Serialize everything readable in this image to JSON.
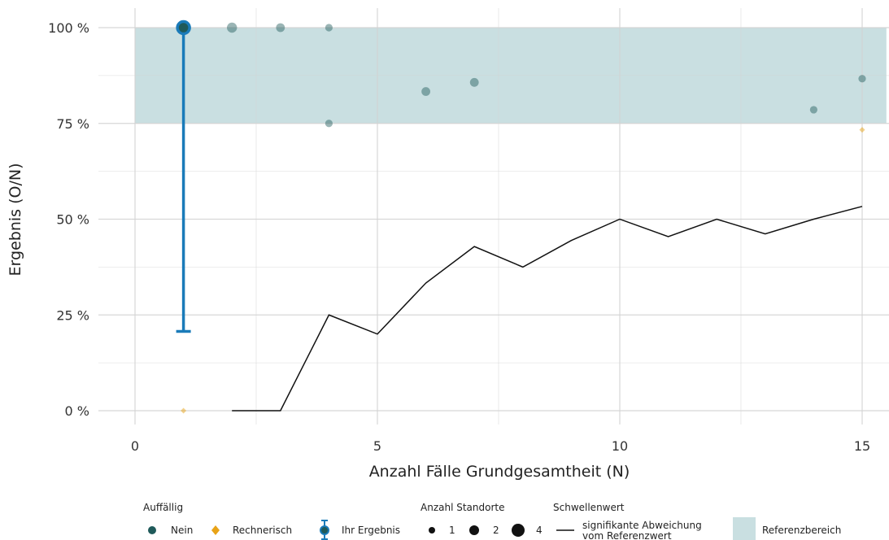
{
  "chart_data": {
    "type": "scatter",
    "xlabel": "Anzahl Fälle Grundgesamtheit (N)",
    "ylabel": "Ergebnis (O/N)",
    "xlim": [
      -0.75,
      15.5
    ],
    "ylim": [
      -0.04,
      1.05
    ],
    "x_ticks": [
      0,
      5,
      10,
      15
    ],
    "x_tick_labels": [
      "0",
      "5",
      "10",
      "15"
    ],
    "y_ticks": [
      0,
      0.25,
      0.5,
      0.75,
      1.0
    ],
    "y_tick_labels": [
      "0 %",
      "25 %",
      "50 %",
      "75 %",
      "100 %"
    ],
    "grid": true,
    "reference_range": {
      "from": 0,
      "to": 15.5,
      "y_min": 0.75,
      "y_max": 1.0,
      "color": "#c9dfe1"
    },
    "points_nein": [
      {
        "x": 1,
        "y": 1.0,
        "count": 3
      },
      {
        "x": 2,
        "y": 1.0,
        "count": 2
      },
      {
        "x": 3,
        "y": 1.0,
        "count": 1.5
      },
      {
        "x": 4,
        "y": 1.0,
        "count": 1
      },
      {
        "x": 4,
        "y": 0.75,
        "count": 1
      },
      {
        "x": 6,
        "y": 0.8333,
        "count": 1.5
      },
      {
        "x": 7,
        "y": 0.8571,
        "count": 1.5
      },
      {
        "x": 14,
        "y": 0.7857,
        "count": 1
      },
      {
        "x": 15,
        "y": 0.8667,
        "count": 1
      }
    ],
    "points_rechnerisch": [
      {
        "x": 1,
        "y": 0.0
      },
      {
        "x": 15,
        "y": 0.7333
      }
    ],
    "own_result": {
      "x": 1,
      "y": 1.0,
      "ci_low": 0.207,
      "ci_high": 1.0
    },
    "threshold_line": {
      "x": [
        2,
        3,
        4,
        5,
        6,
        7,
        8,
        9,
        10,
        11,
        12,
        13,
        14,
        15
      ],
      "y": [
        0.0,
        0.0,
        0.25,
        0.2,
        0.3333,
        0.4286,
        0.375,
        0.4444,
        0.5,
        0.4545,
        0.5,
        0.4615,
        0.5,
        0.5333
      ]
    },
    "colors": {
      "nein": "#1f5a5a",
      "rechnerisch": "#e8a317",
      "ihr_ergebnis": "#1a7bb9",
      "threshold": "#111111",
      "reference": "#c9dfe1",
      "grid": "#d3d3d3"
    },
    "legend": {
      "placement": "bottom",
      "auffaellig_title": "Auffällig",
      "nein_label": "Nein",
      "rechnerisch_label": "Rechnerisch",
      "ihr_ergebnis_label": "Ihr Ergebnis",
      "standorte_title": "Anzahl Standorte",
      "standorte_values": [
        "1",
        "2",
        "4"
      ],
      "schwellenwert_title": "Schwellenwert",
      "schwellenwert_label_1": "signifikante Abweichung",
      "schwellenwert_label_2": "vom Referenzwert",
      "referenz_label": "Referenzbereich"
    }
  }
}
